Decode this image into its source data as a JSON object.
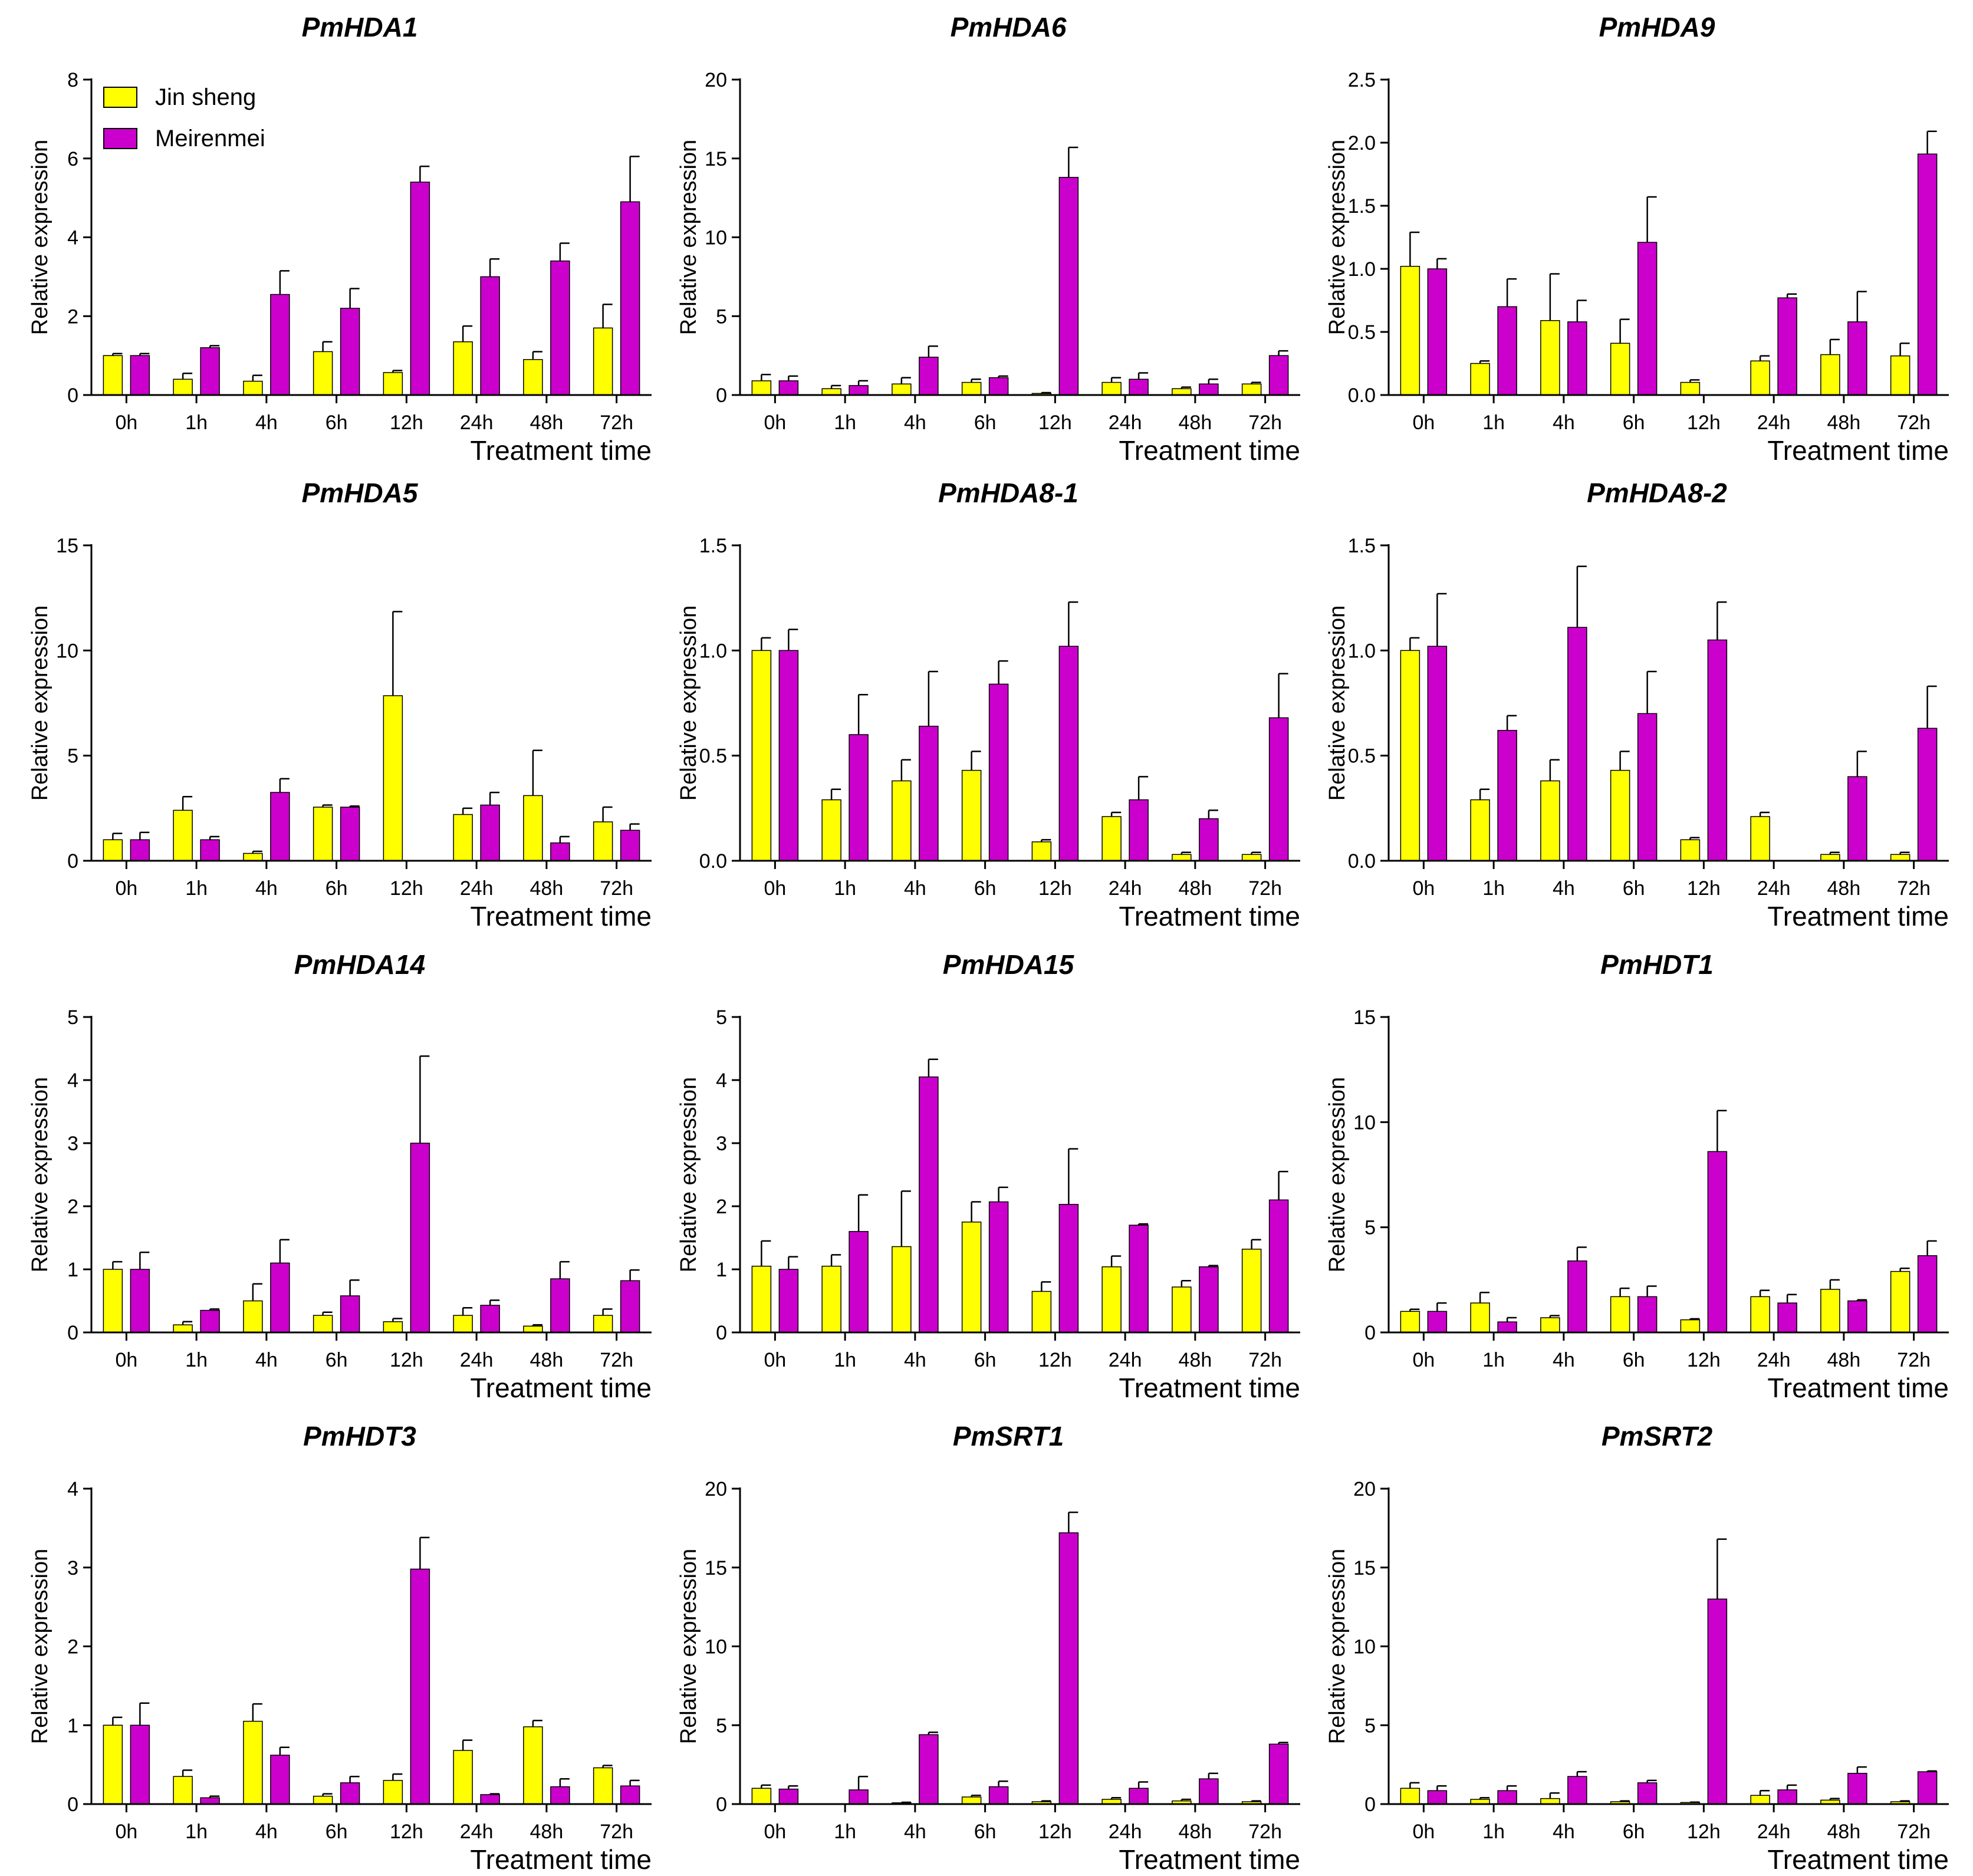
{
  "colors": {
    "Jin sheng": "#FFFF00",
    "Meirenmei": "#CC00CC"
  },
  "legend": {
    "position": "top-left",
    "entries": [
      "Jin sheng",
      "Meirenmei"
    ]
  },
  "chart_data": [
    {
      "type": "bar",
      "title": "PmHDA1",
      "xlabel": "Treatment time",
      "ylabel": "Relative expression",
      "categories": [
        "0h",
        "1h",
        "4h",
        "6h",
        "12h",
        "24h",
        "48h",
        "72h"
      ],
      "ylim": [
        0,
        8
      ],
      "yticks": [
        "0",
        "2",
        "4",
        "6",
        "8"
      ],
      "series": [
        {
          "name": "Jin sheng",
          "values": [
            1.0,
            0.4,
            0.35,
            1.1,
            0.57,
            1.35,
            0.9,
            1.7
          ],
          "errors": [
            0.05,
            0.15,
            0.15,
            0.25,
            0.05,
            0.4,
            0.2,
            0.6
          ]
        },
        {
          "name": "Meirenmei",
          "values": [
            1.0,
            1.2,
            2.55,
            2.2,
            5.4,
            3.0,
            3.4,
            4.9
          ],
          "errors": [
            0.05,
            0.05,
            0.6,
            0.5,
            0.4,
            0.45,
            0.45,
            1.15
          ]
        }
      ]
    },
    {
      "type": "bar",
      "title": "PmHDA6",
      "xlabel": "Treatment time",
      "ylabel": "Relative expression",
      "categories": [
        "0h",
        "1h",
        "4h",
        "6h",
        "12h",
        "24h",
        "48h",
        "72h"
      ],
      "ylim": [
        0,
        20
      ],
      "yticks": [
        "0",
        "5",
        "10",
        "15",
        "20"
      ],
      "series": [
        {
          "name": "Jin sheng",
          "values": [
            0.9,
            0.4,
            0.7,
            0.8,
            0.1,
            0.8,
            0.4,
            0.7
          ],
          "errors": [
            0.4,
            0.2,
            0.4,
            0.2,
            0.05,
            0.3,
            0.1,
            0.1
          ]
        },
        {
          "name": "Meirenmei",
          "values": [
            0.9,
            0.6,
            2.4,
            1.1,
            13.8,
            1.0,
            0.7,
            2.5
          ],
          "errors": [
            0.3,
            0.3,
            0.7,
            0.1,
            1.9,
            0.4,
            0.3,
            0.3
          ]
        }
      ]
    },
    {
      "type": "bar",
      "title": "PmHDA9",
      "xlabel": "Treatment time",
      "ylabel": "Relative expression",
      "categories": [
        "0h",
        "1h",
        "4h",
        "6h",
        "12h",
        "24h",
        "48h",
        "72h"
      ],
      "ylim": [
        0,
        2.5
      ],
      "yticks": [
        "0.0",
        "0.5",
        "1.0",
        "1.5",
        "2.0",
        "2.5"
      ],
      "series": [
        {
          "name": "Jin sheng",
          "values": [
            1.02,
            0.25,
            0.59,
            0.41,
            0.1,
            0.27,
            0.32,
            0.31
          ],
          "errors": [
            0.27,
            0.02,
            0.37,
            0.19,
            0.02,
            0.04,
            0.12,
            0.1
          ]
        },
        {
          "name": "Meirenmei",
          "values": [
            1.0,
            0.7,
            0.58,
            1.21,
            0.0,
            0.77,
            0.58,
            1.91
          ],
          "errors": [
            0.08,
            0.22,
            0.17,
            0.36,
            0.0,
            0.03,
            0.24,
            0.18
          ]
        }
      ]
    },
    {
      "type": "bar",
      "title": "PmHDA5",
      "xlabel": "Treatment time",
      "ylabel": "Relative expression",
      "categories": [
        "0h",
        "1h",
        "4h",
        "6h",
        "12h",
        "24h",
        "48h",
        "72h"
      ],
      "ylim": [
        0,
        15
      ],
      "yticks": [
        "0",
        "5",
        "10",
        "15"
      ],
      "series": [
        {
          "name": "Jin sheng",
          "values": [
            1.0,
            2.4,
            0.35,
            2.55,
            7.85,
            2.2,
            3.1,
            1.85
          ],
          "errors": [
            0.3,
            0.65,
            0.1,
            0.1,
            4.0,
            0.3,
            2.15,
            0.7
          ]
        },
        {
          "name": "Meirenmei",
          "values": [
            1.0,
            1.0,
            3.25,
            2.55,
            0.0,
            2.65,
            0.85,
            1.45
          ],
          "errors": [
            0.35,
            0.15,
            0.65,
            0.05,
            0.0,
            0.6,
            0.3,
            0.3
          ]
        }
      ]
    },
    {
      "type": "bar",
      "title": "PmHDA8-1",
      "xlabel": "Treatment time",
      "ylabel": "Relative expression",
      "categories": [
        "0h",
        "1h",
        "4h",
        "6h",
        "12h",
        "24h",
        "48h",
        "72h"
      ],
      "ylim": [
        0,
        1.5
      ],
      "yticks": [
        "0.0",
        "0.5",
        "1.0",
        "1.5"
      ],
      "series": [
        {
          "name": "Jin sheng",
          "values": [
            1.0,
            0.29,
            0.38,
            0.43,
            0.09,
            0.21,
            0.03,
            0.03
          ],
          "errors": [
            0.06,
            0.05,
            0.1,
            0.09,
            0.01,
            0.02,
            0.01,
            0.01
          ]
        },
        {
          "name": "Meirenmei",
          "values": [
            1.0,
            0.6,
            0.64,
            0.84,
            1.02,
            0.29,
            0.2,
            0.68
          ],
          "errors": [
            0.1,
            0.19,
            0.26,
            0.11,
            0.21,
            0.11,
            0.04,
            0.21
          ]
        }
      ]
    },
    {
      "type": "bar",
      "title": "PmHDA8-2",
      "xlabel": "Treatment time",
      "ylabel": "Relative expression",
      "categories": [
        "0h",
        "1h",
        "4h",
        "6h",
        "12h",
        "24h",
        "48h",
        "72h"
      ],
      "ylim": [
        0,
        1.5
      ],
      "yticks": [
        "0.0",
        "0.5",
        "1.0",
        "1.5"
      ],
      "series": [
        {
          "name": "Jin sheng",
          "values": [
            1.0,
            0.29,
            0.38,
            0.43,
            0.1,
            0.21,
            0.03,
            0.03
          ],
          "errors": [
            0.06,
            0.05,
            0.1,
            0.09,
            0.01,
            0.02,
            0.01,
            0.01
          ]
        },
        {
          "name": "Meirenmei",
          "values": [
            1.02,
            0.62,
            1.11,
            0.7,
            1.05,
            0.0,
            0.4,
            0.63
          ],
          "errors": [
            0.25,
            0.07,
            0.29,
            0.2,
            0.18,
            0.0,
            0.12,
            0.2
          ]
        }
      ]
    },
    {
      "type": "bar",
      "title": "PmHDA14",
      "xlabel": "Treatment time",
      "ylabel": "Relative expression",
      "categories": [
        "0h",
        "1h",
        "4h",
        "6h",
        "12h",
        "24h",
        "48h",
        "72h"
      ],
      "ylim": [
        0,
        5
      ],
      "yticks": [
        "0",
        "1",
        "2",
        "3",
        "4",
        "5"
      ],
      "series": [
        {
          "name": "Jin sheng",
          "values": [
            1.0,
            0.12,
            0.5,
            0.27,
            0.17,
            0.27,
            0.1,
            0.27
          ],
          "errors": [
            0.12,
            0.05,
            0.27,
            0.05,
            0.05,
            0.12,
            0.02,
            0.1
          ]
        },
        {
          "name": "Meirenmei",
          "values": [
            1.0,
            0.35,
            1.1,
            0.58,
            3.0,
            0.43,
            0.85,
            0.82
          ],
          "errors": [
            0.27,
            0.02,
            0.37,
            0.25,
            1.38,
            0.08,
            0.27,
            0.17
          ]
        }
      ]
    },
    {
      "type": "bar",
      "title": "PmHDA15",
      "xlabel": "Treatment time",
      "ylabel": "Relative expression",
      "categories": [
        "0h",
        "1h",
        "4h",
        "6h",
        "12h",
        "24h",
        "48h",
        "72h"
      ],
      "ylim": [
        0,
        5
      ],
      "yticks": [
        "0",
        "1",
        "2",
        "3",
        "4",
        "5"
      ],
      "series": [
        {
          "name": "Jin sheng",
          "values": [
            1.05,
            1.05,
            1.36,
            1.75,
            0.65,
            1.04,
            0.72,
            1.32
          ],
          "errors": [
            0.4,
            0.18,
            0.88,
            0.32,
            0.15,
            0.17,
            0.1,
            0.15
          ]
        },
        {
          "name": "Meirenmei",
          "values": [
            1.0,
            1.6,
            4.05,
            2.07,
            2.03,
            1.7,
            1.04,
            2.1
          ],
          "errors": [
            0.2,
            0.58,
            0.28,
            0.23,
            0.88,
            0.02,
            0.02,
            0.45
          ]
        }
      ]
    },
    {
      "type": "bar",
      "title": "PmHDT1",
      "xlabel": "Treatment time",
      "ylabel": "Relative expression",
      "categories": [
        "0h",
        "1h",
        "4h",
        "6h",
        "12h",
        "24h",
        "48h",
        "72h"
      ],
      "ylim": [
        0,
        15
      ],
      "yticks": [
        "0",
        "5",
        "10",
        "15"
      ],
      "series": [
        {
          "name": "Jin sheng",
          "values": [
            1.0,
            1.4,
            0.7,
            1.7,
            0.6,
            1.7,
            2.05,
            2.9
          ],
          "errors": [
            0.1,
            0.5,
            0.1,
            0.4,
            0.05,
            0.3,
            0.45,
            0.15
          ]
        },
        {
          "name": "Meirenmei",
          "values": [
            1.0,
            0.5,
            3.4,
            1.7,
            8.6,
            1.4,
            1.5,
            3.65
          ],
          "errors": [
            0.4,
            0.2,
            0.65,
            0.5,
            1.95,
            0.4,
            0.05,
            0.7
          ]
        }
      ]
    },
    {
      "type": "bar",
      "title": "PmHDT3",
      "xlabel": "Treatment time",
      "ylabel": "Relative expression",
      "categories": [
        "0h",
        "1h",
        "4h",
        "6h",
        "12h",
        "24h",
        "48h",
        "72h"
      ],
      "ylim": [
        0,
        4
      ],
      "yticks": [
        "0",
        "1",
        "2",
        "3",
        "4"
      ],
      "series": [
        {
          "name": "Jin sheng",
          "values": [
            1.0,
            0.35,
            1.05,
            0.1,
            0.3,
            0.68,
            0.98,
            0.46
          ],
          "errors": [
            0.1,
            0.08,
            0.22,
            0.03,
            0.08,
            0.13,
            0.08,
            0.03
          ]
        },
        {
          "name": "Meirenmei",
          "values": [
            1.0,
            0.08,
            0.62,
            0.27,
            2.98,
            0.12,
            0.22,
            0.23
          ],
          "errors": [
            0.28,
            0.02,
            0.1,
            0.08,
            0.4,
            0.01,
            0.1,
            0.07
          ]
        }
      ]
    },
    {
      "type": "bar",
      "title": "PmSRT1",
      "xlabel": "Treatment time",
      "ylabel": "Relative expression",
      "categories": [
        "0h",
        "1h",
        "4h",
        "6h",
        "12h",
        "24h",
        "48h",
        "72h"
      ],
      "ylim": [
        0,
        20
      ],
      "yticks": [
        "0",
        "5",
        "10",
        "15",
        "20"
      ],
      "series": [
        {
          "name": "Jin sheng",
          "values": [
            1.0,
            0.0,
            0.08,
            0.45,
            0.15,
            0.3,
            0.2,
            0.15
          ],
          "errors": [
            0.2,
            0.0,
            0.03,
            0.1,
            0.05,
            0.1,
            0.1,
            0.05
          ]
        },
        {
          "name": "Meirenmei",
          "values": [
            0.95,
            0.9,
            4.4,
            1.1,
            17.2,
            1.0,
            1.6,
            3.8
          ],
          "errors": [
            0.2,
            0.85,
            0.15,
            0.35,
            1.3,
            0.4,
            0.35,
            0.1
          ]
        }
      ]
    },
    {
      "type": "bar",
      "title": "PmSRT2",
      "xlabel": "Treatment time",
      "ylabel": "Relative expression",
      "categories": [
        "0h",
        "1h",
        "4h",
        "6h",
        "12h",
        "24h",
        "48h",
        "72h"
      ],
      "ylim": [
        0,
        20
      ],
      "yticks": [
        "0",
        "5",
        "10",
        "15",
        "20"
      ],
      "series": [
        {
          "name": "Jin sheng",
          "values": [
            1.0,
            0.3,
            0.35,
            0.15,
            0.1,
            0.55,
            0.25,
            0.15
          ],
          "errors": [
            0.35,
            0.1,
            0.35,
            0.05,
            0.02,
            0.3,
            0.1,
            0.05
          ]
        },
        {
          "name": "Meirenmei",
          "values": [
            0.85,
            0.85,
            1.75,
            1.35,
            13.0,
            0.9,
            1.95,
            2.05
          ],
          "errors": [
            0.3,
            0.3,
            0.3,
            0.15,
            3.8,
            0.3,
            0.4,
            0.05
          ]
        }
      ]
    }
  ]
}
